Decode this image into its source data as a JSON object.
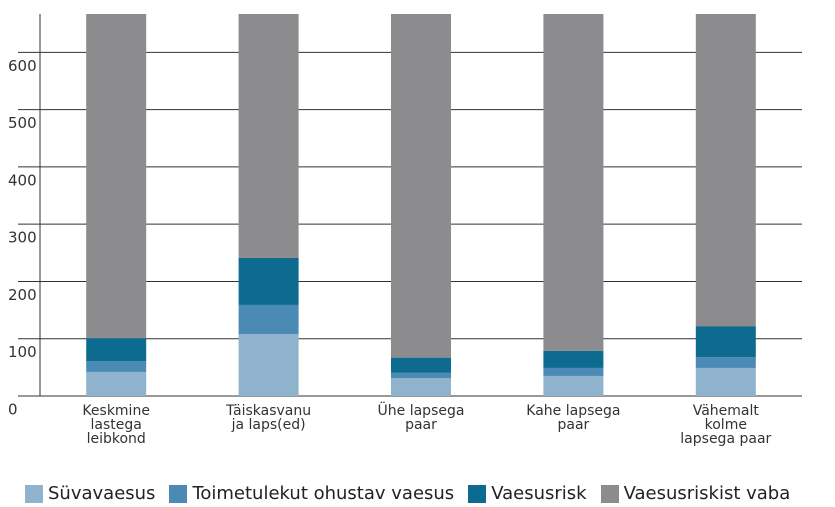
{
  "chart_data": {
    "type": "stacked_bar",
    "categories": [
      "Keskmine lastega leibkond",
      "Täiskasvanu ja laps(ed)",
      "Ühe lapsega paar",
      "Kahe lapsega paar",
      "Vähemalt kolme lapsega paar"
    ],
    "series": [
      {
        "name": "Süvavaesus",
        "color": "#8fb3cc",
        "values": [
          42,
          108,
          31,
          35,
          49
        ]
      },
      {
        "name": "Toimetulekut ohustav vaesus",
        "color": "#4b8ab5",
        "values": [
          19,
          51,
          10,
          14,
          19
        ]
      },
      {
        "name": "Vaesusrisk",
        "color": "#0c6b8f",
        "values": [
          40,
          82,
          26,
          30,
          54
        ]
      },
      {
        "name": "Vaesusriskist vaba",
        "color": "#8c8c8e",
        "values": [
          566,
          426,
          600,
          588,
          545
        ]
      }
    ],
    "ylim": [
      0,
      667
    ],
    "yticks": [
      0,
      100,
      200,
      300,
      400,
      500,
      600
    ],
    "grid": true
  }
}
